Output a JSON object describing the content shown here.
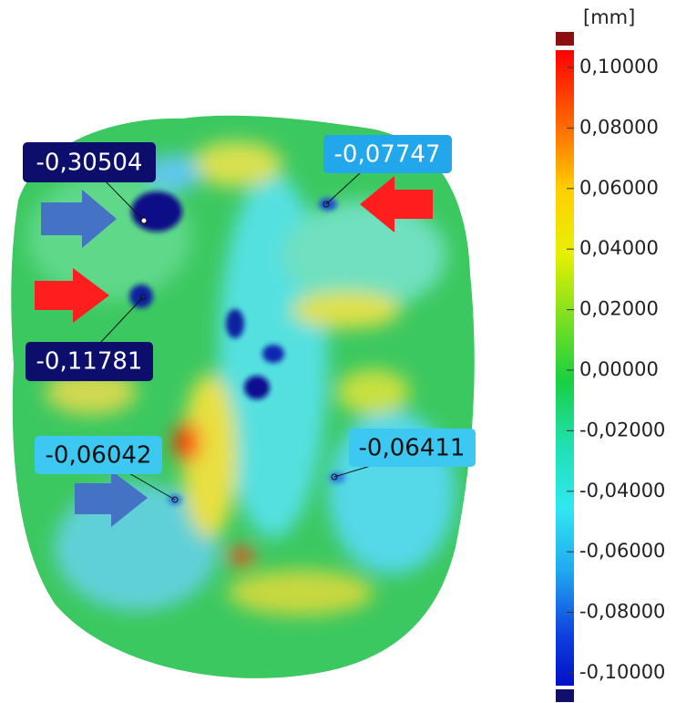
{
  "colorbar": {
    "unit": "[mm]",
    "ticks": [
      "0,10000",
      "0,08000",
      "0,06000",
      "0,04000",
      "0,02000",
      "0,00000",
      "-0,02000",
      "-0,04000",
      "-0,06000",
      "-0,08000",
      "-0,10000"
    ]
  },
  "annotations": [
    {
      "label": "-0,30504"
    },
    {
      "label": "-0,07747"
    },
    {
      "label": "-0,11781"
    },
    {
      "label": "-0,06042"
    },
    {
      "label": "-0,06411"
    }
  ]
}
